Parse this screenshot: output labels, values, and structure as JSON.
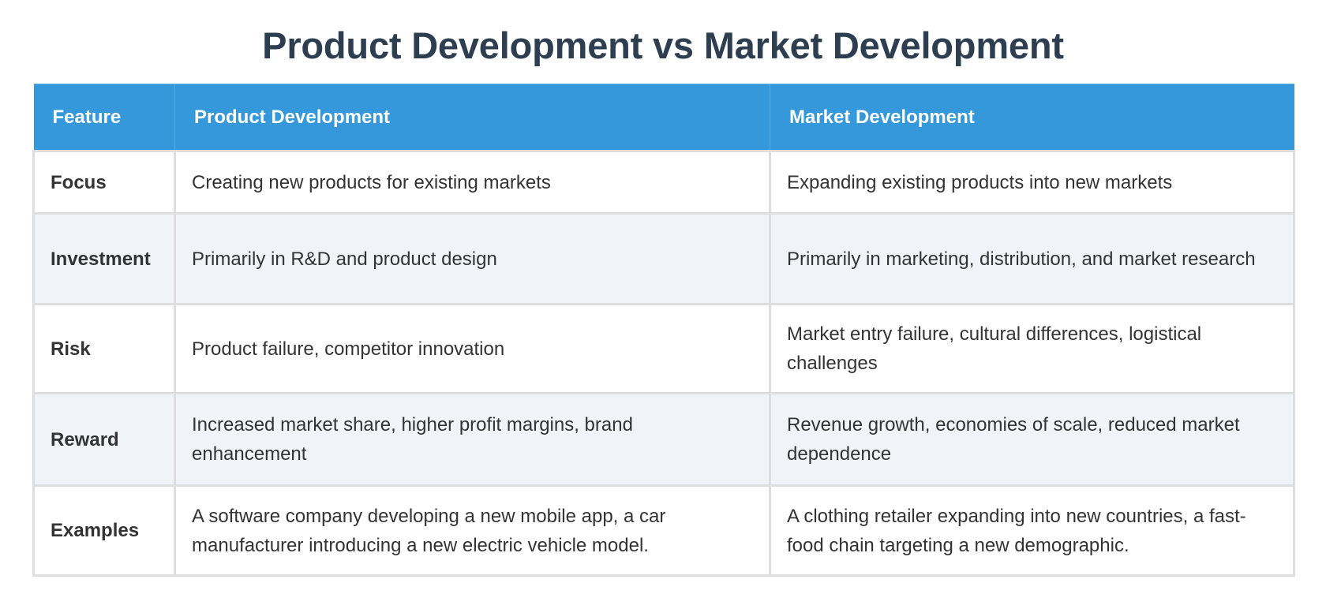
{
  "title": "Product Development vs Market Development",
  "colors": {
    "title": "#2c3e50",
    "header_bg": "#3498db",
    "header_text": "#ffffff",
    "row_alt_bg": "#f0f4f9",
    "border": "#dedede",
    "body_text": "#333333"
  },
  "table": {
    "headers": [
      "Feature",
      "Product Development",
      "Market Development"
    ],
    "rows": [
      {
        "feature": "Focus",
        "product": "Creating new products for existing markets",
        "market": "Expanding existing products into new markets"
      },
      {
        "feature": "Investment",
        "product": "Primarily in R&D and product design",
        "market": "Primarily in marketing, distribution, and market research"
      },
      {
        "feature": "Risk",
        "product": "Product failure, competitor innovation",
        "market": "Market entry failure, cultural differences, logistical challenges"
      },
      {
        "feature": "Reward",
        "product": "Increased market share, higher profit margins, brand enhancement",
        "market": "Revenue growth, economies of scale, reduced market dependence"
      },
      {
        "feature": "Examples",
        "product": "A software company developing a new mobile app, a car manufacturer introducing a new electric vehicle model.",
        "market": "A clothing retailer expanding into new countries, a fast-food chain targeting a new demographic."
      }
    ]
  }
}
